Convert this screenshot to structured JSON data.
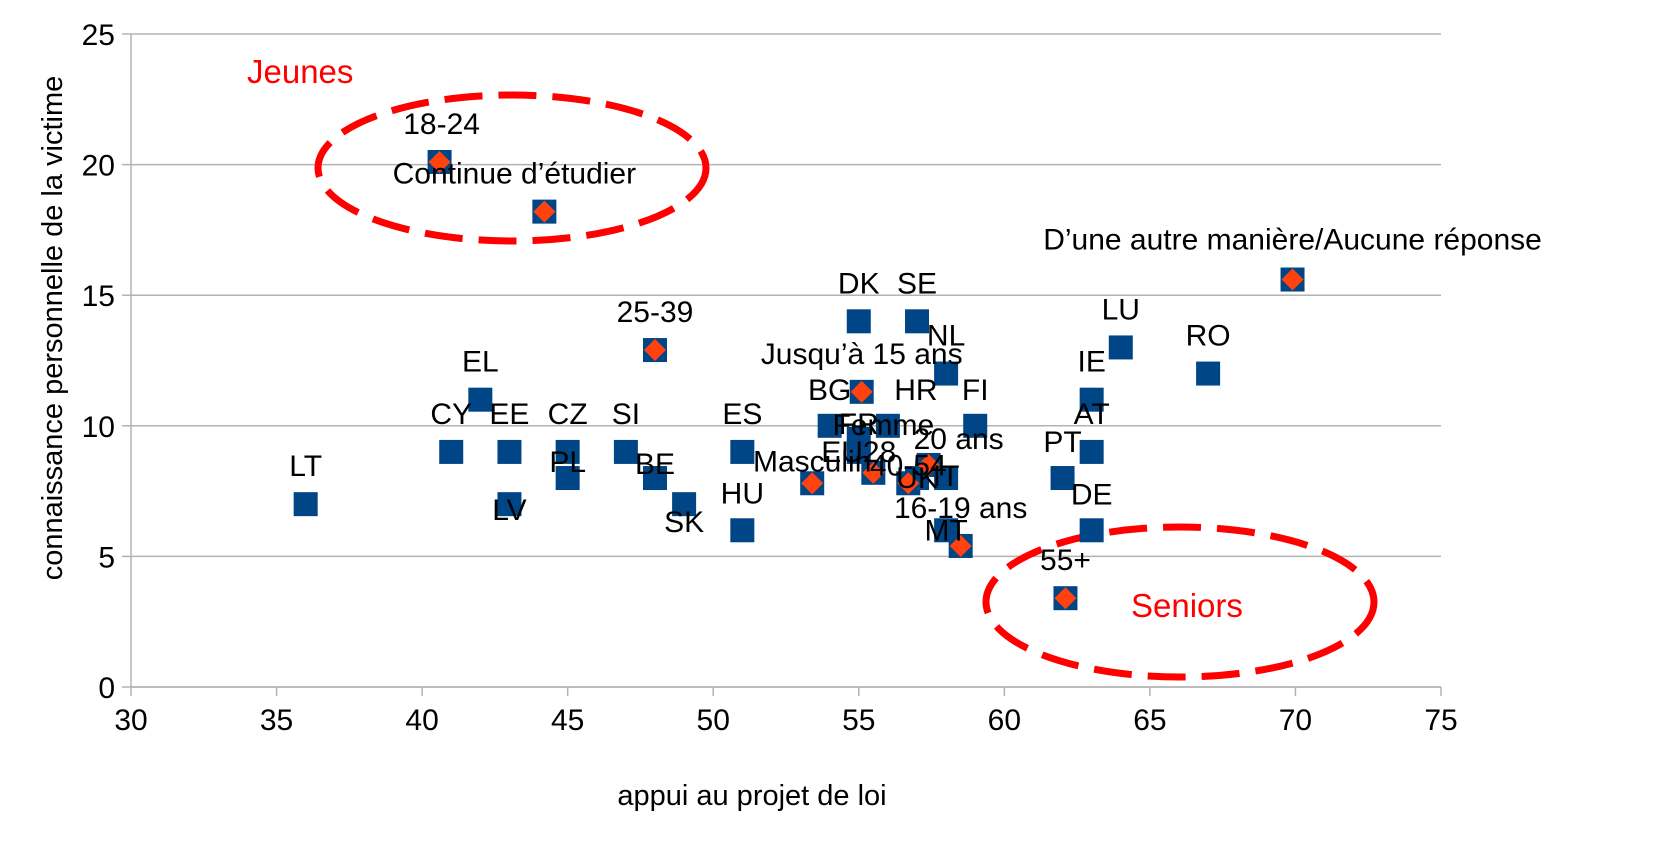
{
  "chart_data": {
    "type": "scatter",
    "title": "",
    "xlabel": "appui au projet de loi",
    "ylabel": "connaissance personnelle de la victime",
    "xlim": [
      30,
      75
    ],
    "ylim": [
      0,
      25
    ],
    "xticks": [
      "30",
      "35",
      "40",
      "45",
      "50",
      "55",
      "60",
      "65",
      "70",
      "75"
    ],
    "yticks": [
      "0",
      "5",
      "10",
      "15",
      "20",
      "25"
    ],
    "grid": "horizontal",
    "legend": "none",
    "series": [
      {
        "marker": "square",
        "color": "#004586",
        "points": [
          {
            "label": "LT",
            "x": 36,
            "y": 7
          },
          {
            "label": "CY",
            "x": 41,
            "y": 9
          },
          {
            "label": "EL",
            "x": 42,
            "y": 11
          },
          {
            "label": "EE",
            "x": 43,
            "y": 9
          },
          {
            "label": "LV",
            "x": 43,
            "y": 7
          },
          {
            "label": "CZ",
            "x": 45,
            "y": 9
          },
          {
            "label": "PL",
            "x": 45,
            "y": 8
          },
          {
            "label": "SI",
            "x": 47,
            "y": 9
          },
          {
            "label": "BE",
            "x": 48,
            "y": 8
          },
          {
            "label": "SK",
            "x": 49,
            "y": 7
          },
          {
            "label": "ES",
            "x": 51,
            "y": 9
          },
          {
            "label": "HU",
            "x": 51,
            "y": 6
          },
          {
            "label": "DK",
            "x": 55,
            "y": 14
          },
          {
            "label": "SE",
            "x": 57,
            "y": 14
          },
          {
            "label": "NL",
            "x": 58,
            "y": 12
          },
          {
            "label": "FI",
            "x": 59,
            "y": 10
          },
          {
            "label": "BG",
            "x": 54,
            "y": 10
          },
          {
            "label": "HR",
            "x": 56,
            "y": 10
          },
          {
            "label": "FR",
            "x": 55,
            "y": 9.5
          },
          {
            "label": "EU28",
            "x": 55,
            "y": 9
          },
          {
            "label": "UK",
            "x": 57,
            "y": 8
          },
          {
            "label": "IT",
            "x": 58,
            "y": 8
          },
          {
            "label": "MT",
            "x": 58,
            "y": 6
          },
          {
            "label": "PT",
            "x": 62,
            "y": 8
          },
          {
            "label": "IE",
            "x": 63,
            "y": 11
          },
          {
            "label": "AT",
            "x": 63,
            "y": 9
          },
          {
            "label": "DE",
            "x": 63,
            "y": 6
          },
          {
            "label": "LU",
            "x": 64,
            "y": 13
          },
          {
            "label": "RO",
            "x": 67,
            "y": 12
          },
          {
            "label": "D’une autre manière/Aucune réponse",
            "x": 69.9,
            "y": 15.6
          },
          {
            "label": "18-24",
            "x": 40.6,
            "y": 20.1
          },
          {
            "label": "Continue d’étudier",
            "x": 44.2,
            "y": 18.2
          },
          {
            "label": "25-39",
            "x": 48,
            "y": 12.9
          },
          {
            "label": "Jusqu’à 15 ans",
            "x": 55.1,
            "y": 11.3
          },
          {
            "label": "Masculin",
            "x": 53.4,
            "y": 7.8
          },
          {
            "label": "Femme",
            "x": 55.5,
            "y": 8.2
          },
          {
            "label": "40-54",
            "x": 56.7,
            "y": 7.8
          },
          {
            "label": "20 ans",
            "x": 57.4,
            "y": 8.5
          },
          {
            "label": "16-19 ans",
            "x": 58.5,
            "y": 5.4
          },
          {
            "label": "55+",
            "x": 62.1,
            "y": 3.4
          }
        ]
      },
      {
        "marker": "diamond",
        "color": "#ff420e",
        "points": [
          {
            "x": 69.9,
            "y": 15.6
          },
          {
            "x": 40.6,
            "y": 20.1
          },
          {
            "x": 44.2,
            "y": 18.2
          },
          {
            "x": 48,
            "y": 12.9
          },
          {
            "x": 55.1,
            "y": 11.3
          },
          {
            "x": 53.4,
            "y": 7.8
          },
          {
            "x": 55.5,
            "y": 8.2
          },
          {
            "x": 56.7,
            "y": 7.8
          },
          {
            "x": 57.4,
            "y": 8.5
          },
          {
            "x": 58.5,
            "y": 5.4
          },
          {
            "x": 62.1,
            "y": 3.4
          }
        ]
      }
    ],
    "annotations": [
      {
        "text": "Jeunes",
        "color": "#ff0000"
      },
      {
        "text": "Seniors",
        "color": "#ff0000"
      }
    ]
  }
}
